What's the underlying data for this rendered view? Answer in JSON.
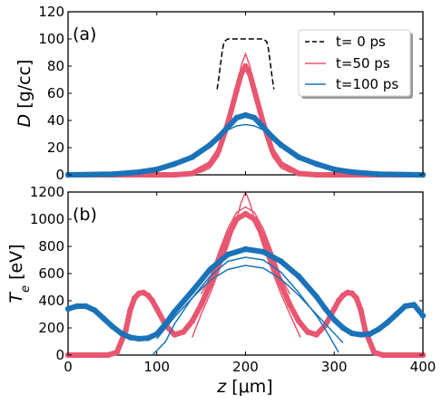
{
  "chart_data": [
    {
      "type": "line",
      "panel_label": "(a)",
      "ylabel": "D [g/cc]",
      "ylabel_var": "D",
      "ylabel_unit": " [g/cc]",
      "xlabel": "",
      "xlim": [
        0,
        400
      ],
      "ylim": [
        0,
        120
      ],
      "yticks": [
        0,
        20,
        40,
        60,
        80,
        100,
        120
      ],
      "legend": {
        "position": "top-right",
        "entries": [
          "t= 0 ps",
          "t=50 ps",
          "t=100 ps"
        ]
      },
      "series": [
        {
          "name": "t= 0 ps",
          "style": "dashed",
          "color": "#000000",
          "x": [
            168,
            170,
            172,
            174,
            176,
            180,
            200,
            220,
            224,
            226,
            228,
            230,
            232
          ],
          "y": [
            63,
            72,
            82,
            92,
            98,
            100,
            100,
            100,
            98,
            92,
            82,
            72,
            63
          ]
        },
        {
          "name": "t=50 ps",
          "style": "markers",
          "color": "#e8566f",
          "x": [
            0,
            100,
            120,
            140,
            160,
            170,
            180,
            190,
            195,
            200,
            205,
            210,
            220,
            230,
            240,
            260,
            280,
            300,
            400
          ],
          "y": [
            0,
            0,
            0,
            1,
            8,
            18,
            38,
            62,
            74,
            80,
            74,
            62,
            38,
            18,
            8,
            1,
            0,
            0,
            0
          ]
        },
        {
          "name": "t=50 ps",
          "style": "line",
          "color": "#e8566f",
          "x": [
            0,
            100,
            130,
            150,
            160,
            170,
            180,
            190,
            195,
            200,
            205,
            210,
            220,
            230,
            240,
            250,
            270,
            300,
            400
          ],
          "y": [
            0,
            0,
            0,
            2,
            5,
            14,
            34,
            62,
            80,
            89,
            80,
            62,
            34,
            14,
            5,
            2,
            0,
            0,
            0
          ]
        },
        {
          "name": "t=100 ps",
          "style": "markers",
          "color": "#1a73b8",
          "x": [
            0,
            50,
            80,
            100,
            120,
            140,
            160,
            170,
            180,
            190,
            200,
            210,
            220,
            230,
            240,
            260,
            280,
            300,
            320,
            350,
            400
          ],
          "y": [
            0,
            0.5,
            2,
            4,
            8,
            13,
            22,
            28,
            35,
            42,
            44,
            42,
            35,
            28,
            22,
            13,
            8,
            4,
            2,
            0.5,
            0
          ]
        },
        {
          "name": "t=100 ps",
          "style": "line",
          "color": "#1a73b8",
          "x": [
            0,
            60,
            100,
            120,
            140,
            160,
            170,
            180,
            190,
            200,
            210,
            220,
            230,
            240,
            260,
            280,
            300,
            340,
            400
          ],
          "y": [
            0,
            0.3,
            3,
            7,
            13,
            23,
            28,
            33,
            36,
            37,
            36,
            33,
            28,
            23,
            13,
            7,
            3,
            0.3,
            0
          ]
        }
      ]
    },
    {
      "type": "line",
      "panel_label": "(b)",
      "ylabel": "T_e [eV]",
      "ylabel_var": "T",
      "ylabel_sub": "e",
      "ylabel_unit": " [eV]",
      "xlabel": "z  [μm]",
      "xlabel_var": "z",
      "xlabel_unit": "  [μm]",
      "xlim": [
        0,
        400
      ],
      "ylim": [
        0,
        1200
      ],
      "xticks": [
        0,
        100,
        200,
        300,
        400
      ],
      "yticks": [
        0,
        200,
        400,
        600,
        800,
        1000,
        1200
      ],
      "series": [
        {
          "name": "t=50 ps",
          "style": "markers",
          "color": "#e8566f",
          "x": [
            0,
            45,
            55,
            65,
            70,
            75,
            80,
            85,
            90,
            95,
            100,
            110,
            120,
            130,
            140,
            150,
            160,
            170,
            180,
            190,
            200,
            210,
            220,
            230,
            240,
            250,
            260,
            270,
            280,
            290,
            300,
            305,
            310,
            315,
            320,
            325,
            330,
            335,
            345,
            355,
            400
          ],
          "y": [
            0,
            0,
            20,
            180,
            330,
            420,
            455,
            460,
            440,
            400,
            340,
            220,
            150,
            170,
            250,
            370,
            520,
            690,
            870,
            1000,
            1040,
            1000,
            870,
            690,
            520,
            370,
            250,
            170,
            150,
            220,
            340,
            400,
            440,
            460,
            455,
            420,
            330,
            180,
            20,
            0,
            0
          ]
        },
        {
          "name": "t=50 ps",
          "style": "line",
          "color": "#e8566f",
          "x": [
            140,
            150,
            160,
            170,
            180,
            190,
            195,
            200,
            205,
            210,
            220,
            230,
            240,
            250,
            262
          ],
          "y": [
            130,
            300,
            450,
            620,
            800,
            1000,
            1120,
            1200,
            1120,
            1000,
            800,
            620,
            450,
            300,
            130
          ]
        },
        {
          "name": "t=50 ps",
          "style": "line",
          "color": "#e8566f",
          "x": [
            150,
            160,
            170,
            180,
            190,
            200,
            210,
            220,
            230,
            240,
            250
          ],
          "y": [
            450,
            570,
            760,
            930,
            1050,
            1090,
            1050,
            930,
            760,
            570,
            450
          ]
        },
        {
          "name": "t=100 ps",
          "style": "markers",
          "color": "#1a73b8",
          "x": [
            0,
            10,
            20,
            30,
            40,
            50,
            60,
            70,
            80,
            90,
            100,
            110,
            120,
            140,
            160,
            180,
            200,
            220,
            240,
            260,
            280,
            290,
            300,
            310,
            320,
            330,
            340,
            350,
            360,
            370,
            380,
            390,
            400
          ],
          "y": [
            340,
            360,
            360,
            330,
            270,
            210,
            160,
            130,
            120,
            125,
            155,
            230,
            320,
            470,
            630,
            740,
            780,
            760,
            690,
            580,
            430,
            340,
            260,
            200,
            160,
            150,
            155,
            190,
            240,
            300,
            360,
            370,
            290
          ]
        },
        {
          "name": "t=100 ps",
          "style": "line",
          "color": "#1a73b8",
          "x": [
            95,
            110,
            120,
            140,
            160,
            180,
            200,
            220,
            240,
            260,
            280,
            290,
            305
          ],
          "y": [
            0,
            100,
            230,
            420,
            580,
            690,
            720,
            700,
            610,
            460,
            290,
            190,
            20
          ]
        },
        {
          "name": "t=100 ps",
          "style": "line",
          "color": "#1a73b8",
          "x": [
            100,
            120,
            140,
            160,
            180,
            200,
            220,
            240,
            260,
            280,
            300,
            310
          ],
          "y": [
            120,
            280,
            420,
            550,
            630,
            660,
            640,
            560,
            440,
            300,
            160,
            90
          ]
        }
      ]
    }
  ]
}
